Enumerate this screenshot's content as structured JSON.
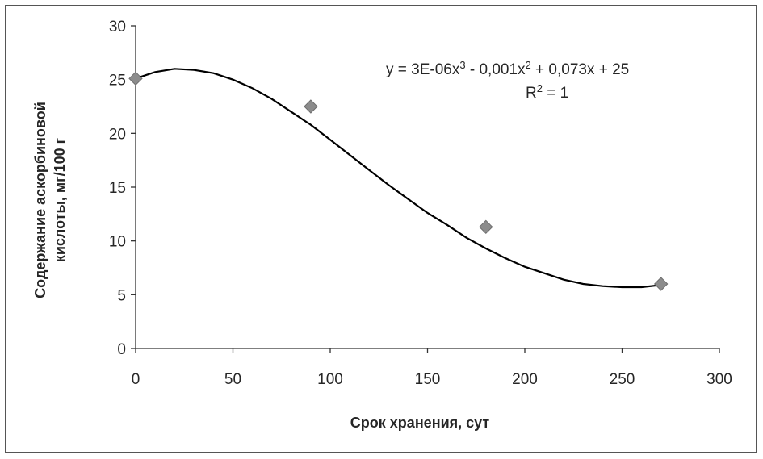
{
  "chart_data": {
    "type": "scatter",
    "title": "",
    "xlabel": "Срок хранения,  сут",
    "ylabel_line1": "Содержание аскорбиновой",
    "ylabel_line2": "кислоты, мг/100 г",
    "xlim": [
      0,
      300
    ],
    "ylim": [
      0,
      30
    ],
    "x_ticks": [
      0,
      50,
      100,
      150,
      200,
      250,
      300
    ],
    "y_ticks": [
      0,
      5,
      10,
      15,
      20,
      25,
      30
    ],
    "grid": false,
    "legend": "none",
    "series": [
      {
        "x": [
          0,
          90,
          180,
          270
        ],
        "y": [
          25.1,
          22.5,
          11.3,
          6.0
        ],
        "marker": "diamond",
        "color": "#8c8c8c"
      }
    ],
    "trendline": {
      "type": "polynomial-3",
      "coefficients": [
        3e-06,
        -0.001,
        0.073,
        25
      ],
      "curve": {
        "x": [
          0,
          10,
          20,
          30,
          40,
          50,
          60,
          70,
          80,
          90,
          100,
          110,
          120,
          130,
          140,
          150,
          160,
          170,
          180,
          190,
          200,
          210,
          220,
          230,
          240,
          250,
          260,
          270
        ],
        "y": [
          25.1,
          25.7,
          26.0,
          25.9,
          25.6,
          25.0,
          24.2,
          23.2,
          22.0,
          20.8,
          19.4,
          18.0,
          16.6,
          15.2,
          13.9,
          12.6,
          11.5,
          10.3,
          9.3,
          8.4,
          7.6,
          7.0,
          6.4,
          6.0,
          5.8,
          5.7,
          5.7,
          5.9
        ]
      },
      "color": "#000000"
    },
    "annotation": {
      "eq_prefix": "y = 3E-06x",
      "eq_exp1": "3",
      "eq_mid": " - 0,001x",
      "eq_exp2": "2",
      "eq_suffix": " + 0,073x  + 25",
      "r2_prefix": "R",
      "r2_exp": "2",
      "r2_suffix": " = 1"
    }
  }
}
